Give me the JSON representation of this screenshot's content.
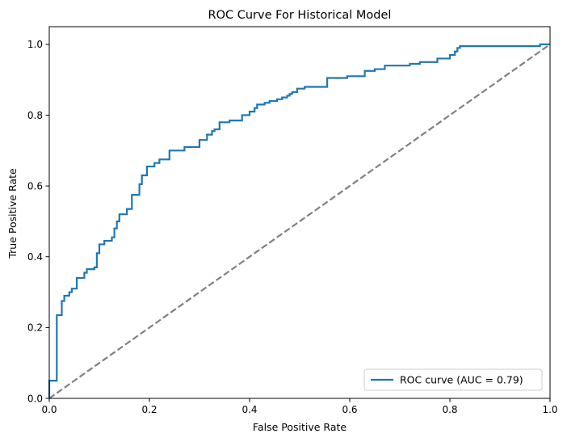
{
  "chart_data": {
    "type": "line",
    "title": "ROC Curve For Historical Model",
    "xlabel": "False Positive Rate",
    "ylabel": "True Positive Rate",
    "xlim": [
      0.0,
      1.0
    ],
    "ylim": [
      0.0,
      1.05
    ],
    "x_ticks": [
      "0.0",
      "0.2",
      "0.4",
      "0.6",
      "0.8",
      "1.0"
    ],
    "y_ticks": [
      "0.0",
      "0.2",
      "0.4",
      "0.6",
      "0.8",
      "1.0"
    ],
    "grid": false,
    "legend_position": "lower-right",
    "series": [
      {
        "name": "ROC curve (AUC = 0.79)",
        "color": "#1f77b4",
        "style": "solid",
        "x": [
          0.0,
          0.0,
          0.015,
          0.015,
          0.025,
          0.025,
          0.03,
          0.03,
          0.04,
          0.04,
          0.045,
          0.045,
          0.055,
          0.055,
          0.07,
          0.07,
          0.075,
          0.075,
          0.09,
          0.09,
          0.095,
          0.095,
          0.1,
          0.1,
          0.11,
          0.11,
          0.125,
          0.125,
          0.13,
          0.13,
          0.135,
          0.135,
          0.14,
          0.14,
          0.155,
          0.155,
          0.165,
          0.165,
          0.18,
          0.18,
          0.185,
          0.185,
          0.195,
          0.195,
          0.21,
          0.21,
          0.22,
          0.22,
          0.24,
          0.24,
          0.27,
          0.27,
          0.3,
          0.3,
          0.315,
          0.315,
          0.325,
          0.325,
          0.33,
          0.33,
          0.34,
          0.34,
          0.36,
          0.36,
          0.385,
          0.385,
          0.4,
          0.4,
          0.41,
          0.41,
          0.415,
          0.415,
          0.43,
          0.43,
          0.44,
          0.44,
          0.455,
          0.455,
          0.465,
          0.465,
          0.475,
          0.475,
          0.48,
          0.48,
          0.485,
          0.485,
          0.495,
          0.495,
          0.51,
          0.51,
          0.555,
          0.555,
          0.595,
          0.595,
          0.63,
          0.63,
          0.65,
          0.65,
          0.67,
          0.67,
          0.72,
          0.72,
          0.74,
          0.74,
          0.775,
          0.775,
          0.8,
          0.8,
          0.81,
          0.81,
          0.815,
          0.815,
          0.82,
          0.82,
          0.98,
          0.98,
          1.0
        ],
        "y": [
          0.0,
          0.05,
          0.05,
          0.235,
          0.235,
          0.275,
          0.275,
          0.29,
          0.29,
          0.3,
          0.3,
          0.31,
          0.31,
          0.34,
          0.34,
          0.355,
          0.355,
          0.365,
          0.365,
          0.37,
          0.37,
          0.41,
          0.41,
          0.435,
          0.435,
          0.445,
          0.445,
          0.455,
          0.455,
          0.48,
          0.48,
          0.5,
          0.5,
          0.52,
          0.52,
          0.535,
          0.535,
          0.575,
          0.575,
          0.605,
          0.605,
          0.63,
          0.63,
          0.655,
          0.655,
          0.665,
          0.665,
          0.675,
          0.675,
          0.7,
          0.7,
          0.71,
          0.71,
          0.73,
          0.73,
          0.745,
          0.745,
          0.755,
          0.755,
          0.76,
          0.76,
          0.78,
          0.78,
          0.785,
          0.785,
          0.8,
          0.8,
          0.81,
          0.81,
          0.82,
          0.82,
          0.83,
          0.83,
          0.835,
          0.835,
          0.84,
          0.84,
          0.845,
          0.845,
          0.85,
          0.85,
          0.855,
          0.855,
          0.86,
          0.86,
          0.865,
          0.865,
          0.875,
          0.875,
          0.88,
          0.88,
          0.905,
          0.905,
          0.91,
          0.91,
          0.925,
          0.925,
          0.93,
          0.93,
          0.94,
          0.94,
          0.945,
          0.945,
          0.95,
          0.95,
          0.96,
          0.96,
          0.97,
          0.97,
          0.98,
          0.98,
          0.99,
          0.99,
          0.995,
          0.995,
          1.0,
          1.0
        ]
      },
      {
        "color": "#808080",
        "style": "dashed",
        "x": [
          0.0,
          1.0
        ],
        "y": [
          0.0,
          1.0
        ]
      }
    ]
  }
}
